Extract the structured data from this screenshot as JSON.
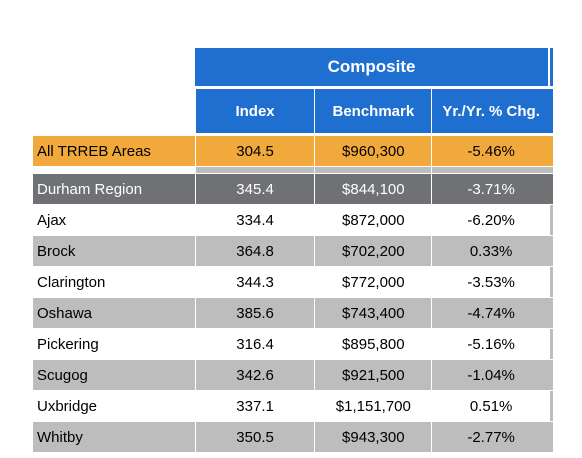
{
  "header": {
    "group_label": "Composite",
    "columns": [
      "Index",
      "Benchmark",
      "Yr./Yr. % Chg."
    ]
  },
  "rows": [
    {
      "area": "All TRREB Areas",
      "index": "304.5",
      "benchmark": "$960,300",
      "change": "-5.46%",
      "style": "orange"
    },
    {
      "area": "Durham Region",
      "index": "345.4",
      "benchmark": "$844,100",
      "change": "-3.71%",
      "style": "dark"
    },
    {
      "area": "Ajax",
      "index": "334.4",
      "benchmark": "$872,000",
      "change": "-6.20%",
      "style": "white"
    },
    {
      "area": "Brock",
      "index": "364.8",
      "benchmark": "$702,200",
      "change": "0.33%",
      "style": "gray"
    },
    {
      "area": "Clarington",
      "index": "344.3",
      "benchmark": "$772,000",
      "change": "-3.53%",
      "style": "white"
    },
    {
      "area": "Oshawa",
      "index": "385.6",
      "benchmark": "$743,400",
      "change": "-4.74%",
      "style": "gray"
    },
    {
      "area": "Pickering",
      "index": "316.4",
      "benchmark": "$895,800",
      "change": "-5.16%",
      "style": "white"
    },
    {
      "area": "Scugog",
      "index": "342.6",
      "benchmark": "$921,500",
      "change": "-1.04%",
      "style": "gray"
    },
    {
      "area": "Uxbridge",
      "index": "337.1",
      "benchmark": "$1,151,700",
      "change": "0.51%",
      "style": "white"
    },
    {
      "area": "Whitby",
      "index": "350.5",
      "benchmark": "$943,300",
      "change": "-2.77%",
      "style": "gray"
    }
  ],
  "colors": {
    "header_blue": "#1f6fd1",
    "highlight_orange": "#f2a93b",
    "region_dark_gray": "#6f7175",
    "stripe_gray": "#bdbdbd"
  }
}
